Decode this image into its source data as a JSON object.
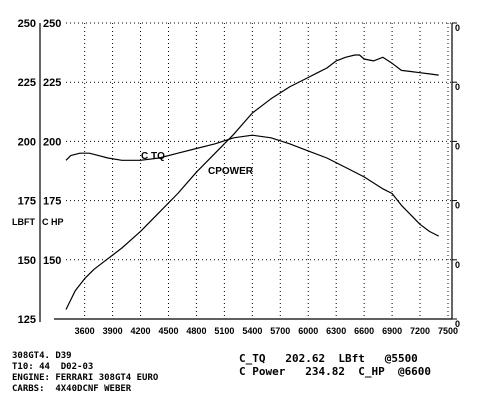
{
  "chart_data": {
    "type": "line",
    "x_ticks": [
      3600,
      3900,
      4200,
      4500,
      4800,
      5100,
      5400,
      5700,
      6000,
      6300,
      6600,
      6900,
      7200,
      7500
    ],
    "xlim": [
      3400,
      7500
    ],
    "y_ticks": [
      125,
      150,
      175,
      200,
      225,
      250
    ],
    "ylim": [
      125,
      250
    ],
    "y_tick_labels_outer": [
      "125",
      "150",
      "175",
      "200",
      "225",
      "250"
    ],
    "y_tick_labels_inner": [
      "",
      "150",
      "175",
      "200",
      "225",
      "250"
    ],
    "y_label_outer": "LBFT",
    "y_label_inner": "C HP",
    "right_tick_labels": [
      "0",
      "0",
      "0",
      "0",
      "0",
      "0"
    ],
    "grid": "dotted",
    "series": [
      {
        "name": "C TQ",
        "x": [
          3400,
          3450,
          3550,
          3650,
          3750,
          3850,
          4000,
          4200,
          4400,
          4600,
          4800,
          5000,
          5200,
          5400,
          5600,
          5800,
          6000,
          6200,
          6400,
          6600,
          6800,
          6900,
          7000,
          7100,
          7200,
          7300,
          7400
        ],
        "y": [
          192,
          194,
          195,
          195,
          194,
          193,
          192,
          192,
          193,
          195,
          197,
          199,
          201.5,
          202.6,
          201.5,
          199,
          196,
          193,
          189,
          185,
          180,
          178,
          173,
          169,
          165,
          162,
          160
        ]
      },
      {
        "name": "CPOWER",
        "x": [
          3400,
          3500,
          3600,
          3700,
          3800,
          3900,
          4000,
          4200,
          4400,
          4600,
          4800,
          5000,
          5200,
          5400,
          5600,
          5800,
          6000,
          6100,
          6200,
          6300,
          6400,
          6500,
          6550,
          6600,
          6700,
          6800,
          6900,
          7000,
          7100,
          7200,
          7300,
          7400
        ],
        "y": [
          129,
          137,
          142,
          146,
          149,
          152,
          155,
          162,
          170,
          178,
          187,
          195,
          203,
          212,
          218,
          223,
          227,
          229,
          231,
          234,
          235.5,
          236.5,
          236.5,
          234.8,
          234,
          235.5,
          233,
          230,
          229.5,
          229,
          228.5,
          228
        ]
      }
    ],
    "annotations": [
      "C TQ",
      "CPOWER"
    ]
  },
  "footer": {
    "left": [
      "308GT4. D39",
      "T10: 44  D02-03",
      "ENGINE: FERRARI 308GT4 EURO",
      "CARBS:  4X40DCNF WEBER"
    ],
    "right": [
      "C_TQ   202.62  LBft   @5500",
      "C Power   234.82  C_HP  @6600"
    ]
  }
}
